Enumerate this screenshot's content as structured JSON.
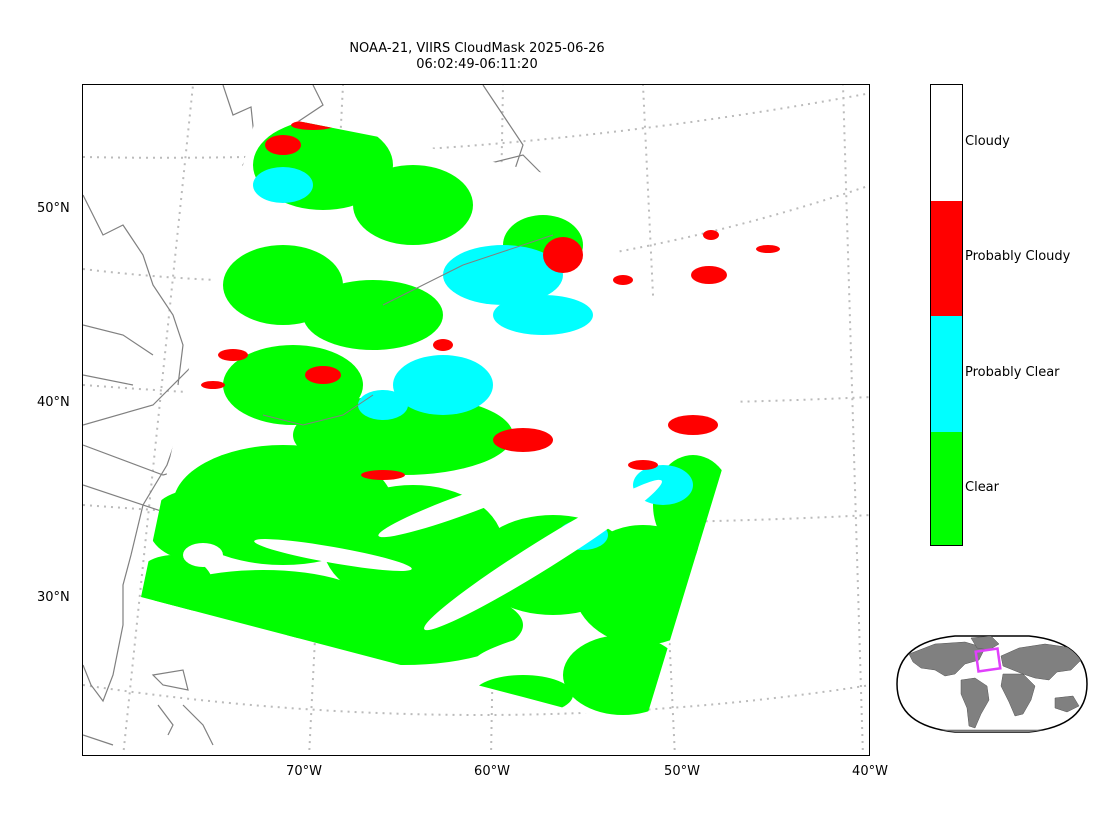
{
  "title": {
    "line1": "NOAA-21, VIIRS CloudMask 2025-06-26",
    "line2": "06:02:49-06:11:20"
  },
  "lat_ticks": [
    "50°N",
    "40°N",
    "30°N"
  ],
  "lon_ticks": [
    "70°W",
    "60°W",
    "50°W",
    "40°W"
  ],
  "colorbar": {
    "classes": [
      {
        "label": "Cloudy",
        "color": "#ffffff"
      },
      {
        "label": "Probably Cloudy",
        "color": "#ff0000"
      },
      {
        "label": "Probably Clear",
        "color": "#00ffff"
      },
      {
        "label": "Clear",
        "color": "#00ff00"
      }
    ]
  },
  "colors": {
    "clear": "#00ff00",
    "probably_clear": "#00ffff",
    "probably_cloudy": "#ff0000",
    "cloudy": "#ffffff",
    "coastline": "#808080",
    "gridline": "#bbbbbb",
    "inset_box": "#e040fb",
    "inset_land": "#808080"
  }
}
